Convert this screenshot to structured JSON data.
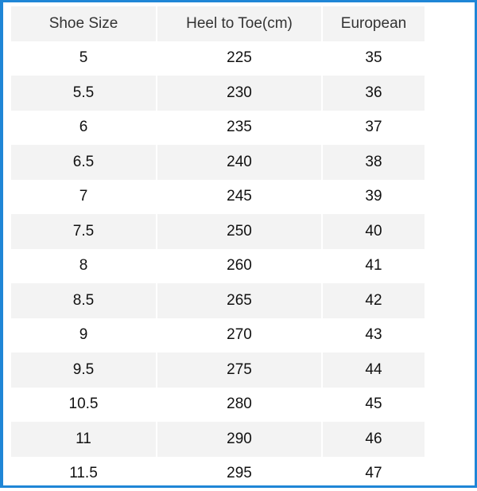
{
  "table": {
    "headers": [
      "Shoe Size",
      "Heel to Toe(cm)",
      "European"
    ],
    "rows": [
      [
        "5",
        "225",
        "35"
      ],
      [
        "5.5",
        "230",
        "36"
      ],
      [
        "6",
        "235",
        "37"
      ],
      [
        "6.5",
        "240",
        "38"
      ],
      [
        "7",
        "245",
        "39"
      ],
      [
        "7.5",
        "250",
        "40"
      ],
      [
        "8",
        "260",
        "41"
      ],
      [
        "8.5",
        "265",
        "42"
      ],
      [
        "9",
        "270",
        "43"
      ],
      [
        "9.5",
        "275",
        "44"
      ],
      [
        "10.5",
        "280",
        "45"
      ],
      [
        "11",
        "290",
        "46"
      ],
      [
        "11.5",
        "295",
        "47"
      ]
    ]
  },
  "colors": {
    "frame": "#1f86d6",
    "stripe": "#f3f3f3"
  }
}
